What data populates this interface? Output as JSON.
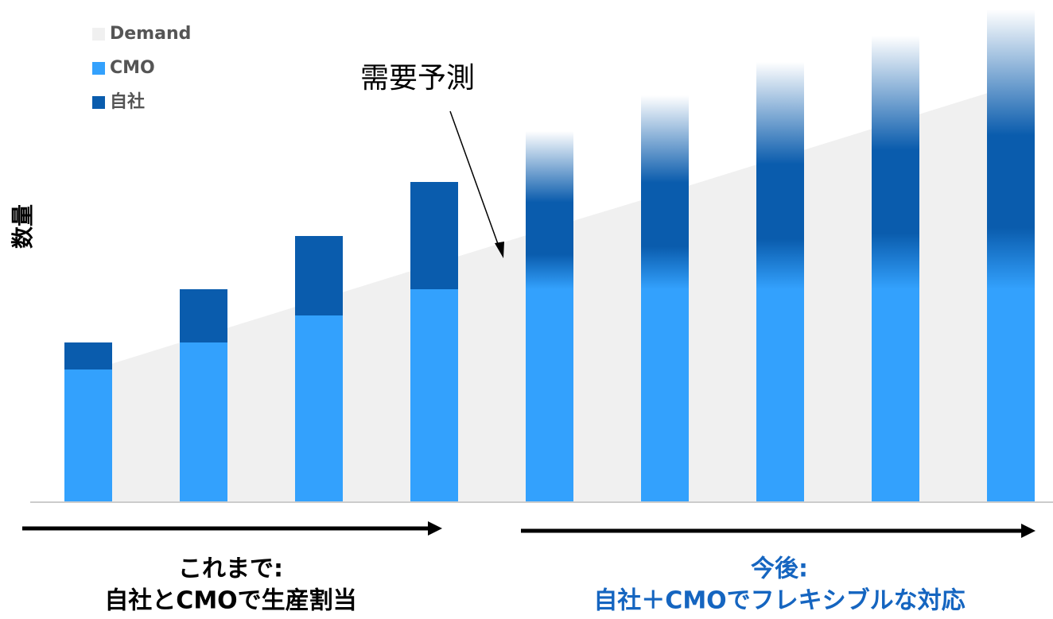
{
  "chart_data": {
    "type": "bar",
    "stacked": true,
    "categories": [
      null,
      null,
      null,
      null,
      null,
      null,
      null,
      null,
      null
    ],
    "series": [
      {
        "name": "CMO",
        "color": "#33a1fd",
        "values": [
          167,
          201,
          235,
          268,
          268,
          268,
          268,
          268,
          268
        ]
      },
      {
        "name": "自社",
        "color": "#0a5cad",
        "values": [
          34,
          67,
          100,
          135,
          199,
          244,
          286,
          319,
          352
        ]
      }
    ],
    "area": {
      "name": "Demand",
      "color": "#f0f0f0",
      "values": [
        165,
        210,
        255,
        300,
        345,
        389,
        434,
        479,
        524
      ]
    },
    "faded_from": 4,
    "ylim": [
      0,
      632
    ],
    "ylabel": "数量",
    "annotation": "需要予測",
    "periods": [
      {
        "title": "これまで:",
        "text": "自社とCMOで生産割当",
        "color": "#000000"
      },
      {
        "title": "今後:",
        "text": "自社＋CMOでフレキシブルな対応",
        "color": "#1565c0"
      }
    ]
  }
}
